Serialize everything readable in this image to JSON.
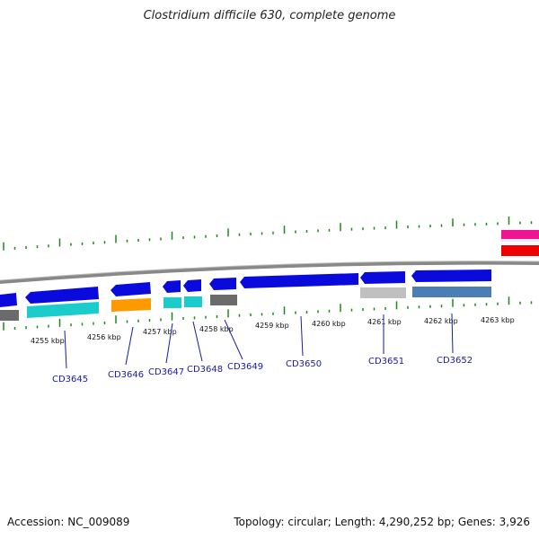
{
  "title": "Clostridium difficile 630, complete genome",
  "accession_text": "Accession: NC_009089",
  "summary_text": "Topology: circular; Length: 4,290,252 bp; Genes: 3,926",
  "colors": {
    "backbone": "#808080",
    "tick": "#1a8a1a",
    "gene_blue": "#0a0adc",
    "teal": "#1acccc",
    "orange": "#ff9900",
    "gray": "#666666",
    "light_gray": "#c0c0c0",
    "steel_blue": "#4a7fb5",
    "pink": "#ee1493",
    "red": "#ee0000",
    "label": "#1a1aa6"
  },
  "scale_labels": [
    "4255 kbp",
    "4256 kbp",
    "4257 kbp",
    "4258 kbp",
    "4259 kbp",
    "4260 kbp",
    "4261 kbp",
    "4262 kbp",
    "4263 kbp"
  ],
  "gene_labels": [
    "CD3645",
    "CD3646",
    "CD3647",
    "CD3648",
    "CD3649",
    "CD3650",
    "CD3651",
    "CD3652"
  ]
}
